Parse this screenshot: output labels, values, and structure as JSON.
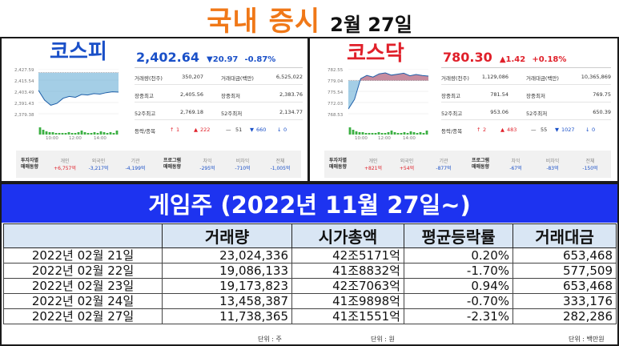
{
  "header": {
    "title": "국내 증시",
    "date": "2월 27일"
  },
  "kospi": {
    "name": "코스피",
    "value": "2,402.64",
    "change": "▼20.97",
    "change_pct": "-0.87%",
    "stats": [
      {
        "label": "거래량(천주)",
        "value": "350,207",
        "label2": "거래대금(백만)",
        "value2": "6,525,022"
      },
      {
        "label": "장중최고",
        "value": "2,405.56",
        "label2": "장중최저",
        "value2": "2,383.76"
      },
      {
        "label": "52주최고",
        "value": "2,769.18",
        "label2": "52주최저",
        "value2": "2,134.77"
      }
    ],
    "updown_label": "등락/종목",
    "updown": [
      "↑",
      "1",
      "▲",
      "222",
      "—",
      "51",
      "▼",
      "660",
      "↓",
      "0"
    ],
    "yticks": [
      "2,427.59",
      "2,415.54",
      "2,403.49",
      "2,391.43",
      "2,379.38"
    ],
    "xticks": [
      "10:00",
      "12:00",
      "14:00"
    ],
    "investor_header": [
      "투자자별",
      "매매동향"
    ],
    "investors": [
      {
        "name": "개인",
        "value": "+6,757억"
      },
      {
        "name": "외국인",
        "value": "-3,217억"
      },
      {
        "name": "기관",
        "value": "-4,199억"
      }
    ],
    "program_header": [
      "프로그램",
      "매매동향"
    ],
    "program": [
      {
        "name": "차익",
        "value": "-295억"
      },
      {
        "name": "비차익",
        "value": "-710억"
      },
      {
        "name": "전체",
        "value": "-1,005억"
      }
    ]
  },
  "kosdaq": {
    "name": "코스닥",
    "value": "780.30",
    "change": "▲1.42",
    "change_pct": "+0.18%",
    "stats": [
      {
        "label": "거래량(천주)",
        "value": "1,129,086",
        "label2": "거래대금(백만)",
        "value2": "10,365,869"
      },
      {
        "label": "장중최고",
        "value": "781.54",
        "label2": "장중최저",
        "value2": "769.75"
      },
      {
        "label": "52주최고",
        "value": "953.06",
        "label2": "52주최저",
        "value2": "650.39"
      }
    ],
    "updown_label": "등락/종목",
    "updown": [
      "↑",
      "2",
      "▲",
      "483",
      "—",
      "55",
      "▼",
      "1027",
      "↓",
      "0"
    ],
    "yticks": [
      "782.55",
      "779.04",
      "775.54",
      "772.03",
      "768.53"
    ],
    "xticks": [
      "10:00",
      "12:00",
      "14:00"
    ],
    "investor_header": [
      "투자자별",
      "매매동향"
    ],
    "investors": [
      {
        "name": "개인",
        "value": "+821억"
      },
      {
        "name": "외국인",
        "value": "+54억"
      },
      {
        "name": "기관",
        "value": "-877억"
      }
    ],
    "program_header": [
      "프로그램",
      "매매동향"
    ],
    "program": [
      {
        "name": "차익",
        "value": "-67억"
      },
      {
        "name": "비차익",
        "value": "-83억"
      },
      {
        "name": "전체",
        "value": "-150억"
      }
    ]
  },
  "game": {
    "title": "게임주 (2022년 11월 27일~)",
    "headers": [
      "",
      "거래량",
      "시가총액",
      "평균등락률",
      "거래대금"
    ],
    "rows": [
      {
        "date": "2022년 02월 21일",
        "volume": "23,024,336",
        "mcap": "42조5171억",
        "rate": "0.20%",
        "amount": "653,468"
      },
      {
        "date": "2022년 02월 22일",
        "volume": "19,086,133",
        "mcap": "41조8832억",
        "rate": "-1.70%",
        "amount": "577,509"
      },
      {
        "date": "2022년 02월 23일",
        "volume": "19,173,823",
        "mcap": "42조7063억",
        "rate": "0.94%",
        "amount": "653,468"
      },
      {
        "date": "2022년 02월 24일",
        "volume": "13,458,387",
        "mcap": "41조9898억",
        "rate": "-0.70%",
        "amount": "333,176"
      },
      {
        "date": "2022년 02월 27일",
        "volume": "11,738,365",
        "mcap": "41조1551억",
        "rate": "-2.31%",
        "amount": "282,286"
      }
    ],
    "units": [
      "단위 : 주",
      "단위 : 원",
      "단위 : 백만원"
    ]
  },
  "colors": {
    "orange": "#f07818",
    "blue_band": "#1d33f0",
    "up": "#e0202a",
    "down": "#1a50c8",
    "header_bg": "#d9e6f4"
  },
  "chart_data": [
    {
      "type": "table",
      "title": "게임주 (2022년 11월 27일~)",
      "columns": [
        "",
        "거래량",
        "시가총액",
        "평균등락률",
        "거래대금"
      ],
      "rows": [
        [
          "2022년 02월 21일",
          23024336,
          "42조5171억",
          0.2,
          653468
        ],
        [
          "2022년 02월 22일",
          19086133,
          "41조8832억",
          -1.7,
          577509
        ],
        [
          "2022년 02월 23일",
          19173823,
          "42조7063억",
          0.94,
          653468
        ],
        [
          "2022년 02월 24일",
          13458387,
          "41조9898억",
          -0.7,
          333176
        ],
        [
          "2022년 02월 27일",
          11738365,
          "41조1551억",
          -2.31,
          282286
        ]
      ]
    },
    {
      "type": "area",
      "title": "",
      "ylim": [
        2379.38,
        2427.59
      ],
      "xlabel": "",
      "ylabel": "",
      "x": [
        "09:00",
        "09:30",
        "10:00",
        "10:30",
        "11:00",
        "11:30",
        "12:00",
        "12:30",
        "13:00",
        "13:30",
        "14:00",
        "14:30",
        "15:00",
        "15:30"
      ],
      "series": [
        {
          "values": [
            2404.5,
            2394,
            2388.5,
            2390.5,
            2396,
            2398,
            2397,
            2400,
            2399.5,
            2401,
            2400.5,
            2402,
            2403,
            2402.6
          ]
        }
      ],
      "baseline": 2423.6
    },
    {
      "type": "area",
      "title": "",
      "ylim": [
        768.53,
        782.55
      ],
      "xlabel": "",
      "ylabel": "",
      "x": [
        "09:00",
        "09:30",
        "10:00",
        "10:30",
        "11:00",
        "11:30",
        "12:00",
        "12:30",
        "13:00",
        "13:30",
        "14:00",
        "14:30",
        "15:00",
        "15:30"
      ],
      "series": [
        {
          "values": [
            770,
            773,
            779.5,
            780.5,
            780,
            781,
            781.3,
            780.6,
            780.9,
            781.2,
            780.4,
            780.8,
            780.5,
            780.3
          ]
        }
      ],
      "baseline": 778.9
    }
  ]
}
